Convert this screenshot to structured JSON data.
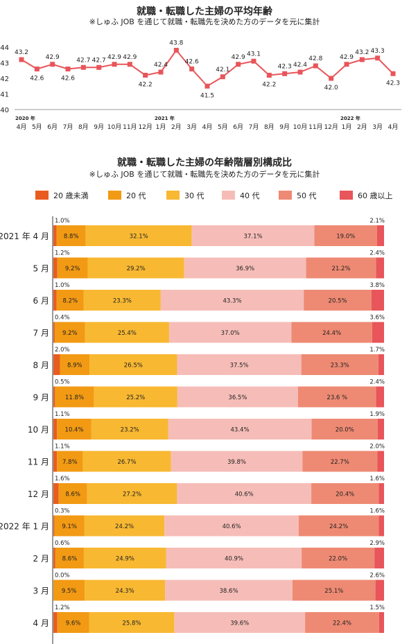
{
  "chart_data": [
    {
      "type": "line",
      "title": "就職・転職した主婦の平均年齢",
      "subtitle": "※しゅふ JOB を通じて就職・転職先を決めた方のデータを元に集計",
      "x": [
        "4月",
        "5月",
        "6月",
        "7月",
        "8月",
        "9月",
        "10月",
        "11月",
        "12月",
        "1月",
        "2月",
        "3月",
        "4月",
        "5月",
        "6月",
        "7月",
        "8月",
        "9月",
        "10月",
        "11月",
        "12月",
        "1月",
        "2月",
        "3月",
        "4月"
      ],
      "year_labels": [
        {
          "index": 0,
          "label": "2020 年"
        },
        {
          "index": 9,
          "label": "2021 年"
        },
        {
          "index": 21,
          "label": "2022 年"
        }
      ],
      "series": [
        {
          "values": [
            43.2,
            42.6,
            42.9,
            42.6,
            42.7,
            42.7,
            42.9,
            42.9,
            42.2,
            42.4,
            43.8,
            42.6,
            41.5,
            42.1,
            42.9,
            43.1,
            42.2,
            42.3,
            42.4,
            42.8,
            42.0,
            42.9,
            43.2,
            43.3,
            42.3
          ]
        }
      ],
      "data_labels": [
        "43.2",
        "42.6",
        "42.9",
        "42.6",
        "42.7",
        "42.7",
        "42.9",
        "42.9",
        "42.2",
        "42.4",
        "43.8",
        "42.6",
        "41.5",
        "42.1",
        "42.9",
        "43.1",
        "42.2",
        "42.3",
        "42.4",
        "42.8",
        "42.0",
        "42.9",
        "43.2",
        "43.3",
        "42.3"
      ],
      "yticks": [
        "40",
        "41",
        "42",
        "43",
        "44"
      ],
      "ylim": [
        40,
        44
      ],
      "grid": false,
      "color": "#e8555a"
    },
    {
      "type": "bar",
      "stacked": true,
      "orientation": "horizontal",
      "percent": true,
      "title": "就職・転職した主婦の年齢階層別構成比",
      "subtitle": "※しゅふ JOB を通じて就職・転職先を決めた方のデータを元に集計",
      "legend_position": "top",
      "categories": [
        "2021 年 4 月",
        "5 月",
        "6 月",
        "7 月",
        "8 月",
        "9 月",
        "10 月",
        "11 月",
        "12 月",
        "2022 年 1 月",
        "2 月",
        "3 月",
        "4 月"
      ],
      "series": [
        {
          "name": "20 歳未満",
          "color": "#e85d1f",
          "values": [
            1.0,
            1.2,
            1.0,
            0.4,
            2.0,
            0.5,
            1.1,
            1.1,
            1.6,
            0.3,
            0.6,
            0.0,
            1.2
          ],
          "labels": [
            "1.0%",
            "1.2%",
            "1.0%",
            "0.4%",
            "2.0%",
            "0.5%",
            "1.1%",
            "1.1%",
            "1.6%",
            "0.3%",
            "0.6%",
            "0.0%",
            "1.2%"
          ]
        },
        {
          "name": "20 代",
          "color": "#f29a14",
          "values": [
            8.8,
            9.2,
            8.2,
            9.2,
            8.9,
            11.8,
            10.4,
            7.8,
            8.6,
            9.1,
            8.6,
            9.5,
            9.6
          ],
          "labels": [
            "8.8%",
            "9.2%",
            "8.2%",
            "9.2%",
            "8.9%",
            "11.8%",
            "10.4%",
            "7.8%",
            "8.6%",
            "9.1%",
            "8.6%",
            "9.5%",
            "9.6%"
          ]
        },
        {
          "name": "30 代",
          "color": "#f8b832",
          "values": [
            32.1,
            29.2,
            23.3,
            25.4,
            26.5,
            25.2,
            23.2,
            26.7,
            27.2,
            24.2,
            24.9,
            24.3,
            25.8
          ],
          "labels": [
            "32.1%",
            "29.2%",
            "23.3%",
            "25.4%",
            "26.5%",
            "25.2%",
            "23.2%",
            "26.7%",
            "27.2%",
            "24.2%",
            "24.9%",
            "24.3%",
            "25.8%"
          ]
        },
        {
          "name": "40 代",
          "color": "#f6bdb8",
          "values": [
            37.1,
            36.9,
            43.3,
            37.0,
            37.5,
            36.5,
            43.4,
            39.8,
            40.6,
            40.6,
            40.9,
            38.6,
            39.6
          ],
          "labels": [
            "37.1%",
            "36.9%",
            "43.3%",
            "37.0%",
            "37.5%",
            "36.5%",
            "43.4%",
            "39.8%",
            "40.6%",
            "40.6%",
            "40.9%",
            "38.6%",
            "39.6%"
          ]
        },
        {
          "name": "50 代",
          "color": "#ee8a73",
          "values": [
            19.0,
            21.2,
            20.5,
            24.4,
            23.3,
            23.6,
            20.0,
            22.7,
            20.4,
            24.2,
            22.0,
            25.1,
            22.4
          ],
          "labels": [
            "19.0%",
            "21.2%",
            "20.5%",
            "24.4%",
            "23.3%",
            "23.6 %",
            "20.0%",
            "22.7%",
            "20.4%",
            "24.2%",
            "22.0%",
            "25.1%",
            "22.4%"
          ]
        },
        {
          "name": "60 歳以上",
          "color": "#e8555a",
          "values": [
            2.1,
            2.4,
            3.8,
            3.6,
            1.7,
            2.4,
            1.9,
            2.0,
            1.6,
            1.6,
            2.9,
            2.6,
            1.5
          ],
          "labels": [
            "2.1%",
            "2.4%",
            "3.8%",
            "3.6%",
            "1.7%",
            "2.4%",
            "1.9%",
            "2.0%",
            "1.6%",
            "1.6%",
            "2.9%",
            "2.6%",
            "1.5%"
          ]
        }
      ]
    }
  ]
}
